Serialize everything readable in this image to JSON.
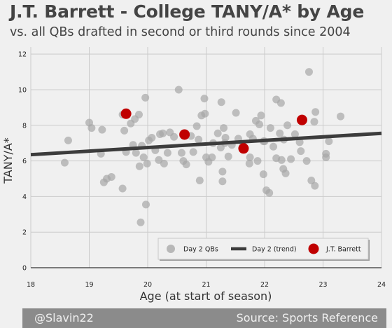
{
  "title": "J.T. Barrett - College TANY/A* by Age",
  "subtitle": "vs. all QBs drafted in second or third rounds since 2004",
  "footer": {
    "left": "@Slavin22",
    "right": "Source: Sports Reference"
  },
  "colors": {
    "background": "#f0f0f0",
    "grid": "#cbcbcb",
    "day2": "#a6a6a6",
    "trend": "#3c3c3c",
    "barrett": "#c00000",
    "footer": "#8b8b8b"
  },
  "chart_data": {
    "type": "scatter",
    "xlabel": "Age (at start of season)",
    "ylabel": "TANY/A*",
    "xlim": [
      18,
      24
    ],
    "ylim": [
      0,
      12.4
    ],
    "xticks": [
      18,
      19,
      20,
      21,
      22,
      23,
      24
    ],
    "yticks": [
      0,
      2,
      4,
      6,
      8,
      10,
      12
    ],
    "grid": true,
    "legend_position": "bottom-right",
    "series": [
      {
        "name": "Day 2 QBs",
        "type": "scatter",
        "points": [
          [
            18.58,
            5.9
          ],
          [
            18.64,
            7.15
          ],
          [
            19.0,
            8.15
          ],
          [
            19.04,
            7.85
          ],
          [
            19.2,
            6.4
          ],
          [
            19.22,
            7.75
          ],
          [
            19.25,
            4.8
          ],
          [
            19.3,
            5.0
          ],
          [
            19.38,
            5.1
          ],
          [
            19.57,
            8.6
          ],
          [
            19.57,
            4.45
          ],
          [
            19.6,
            7.7
          ],
          [
            19.63,
            6.5
          ],
          [
            19.71,
            8.1
          ],
          [
            19.75,
            6.9
          ],
          [
            19.78,
            8.35
          ],
          [
            19.8,
            6.45
          ],
          [
            19.85,
            8.6
          ],
          [
            19.86,
            5.7
          ],
          [
            19.88,
            2.55
          ],
          [
            19.9,
            6.85
          ],
          [
            19.93,
            6.2
          ],
          [
            19.96,
            9.55
          ],
          [
            19.97,
            3.55
          ],
          [
            19.99,
            5.85
          ],
          [
            20.02,
            7.15
          ],
          [
            20.07,
            7.3
          ],
          [
            20.13,
            6.6
          ],
          [
            20.19,
            6.05
          ],
          [
            20.21,
            7.5
          ],
          [
            20.26,
            7.55
          ],
          [
            20.28,
            5.85
          ],
          [
            20.34,
            6.45
          ],
          [
            20.38,
            7.6
          ],
          [
            20.45,
            7.35
          ],
          [
            20.53,
            10.0
          ],
          [
            20.58,
            6.45
          ],
          [
            20.61,
            6.0
          ],
          [
            20.66,
            5.8
          ],
          [
            20.74,
            7.4
          ],
          [
            20.78,
            6.5
          ],
          [
            20.84,
            7.95
          ],
          [
            20.87,
            7.2
          ],
          [
            20.89,
            4.9
          ],
          [
            20.92,
            8.55
          ],
          [
            20.97,
            9.5
          ],
          [
            20.98,
            8.65
          ],
          [
            21.0,
            6.2
          ],
          [
            21.04,
            5.95
          ],
          [
            21.1,
            6.2
          ],
          [
            21.12,
            7.0
          ],
          [
            21.2,
            7.55
          ],
          [
            21.25,
            6.75
          ],
          [
            21.26,
            9.3
          ],
          [
            21.28,
            5.4
          ],
          [
            21.28,
            4.85
          ],
          [
            21.3,
            7.85
          ],
          [
            21.32,
            7.0
          ],
          [
            21.33,
            7.3
          ],
          [
            21.38,
            6.25
          ],
          [
            21.44,
            6.9
          ],
          [
            21.51,
            8.7
          ],
          [
            21.55,
            7.25
          ],
          [
            21.63,
            6.85
          ],
          [
            21.74,
            5.85
          ],
          [
            21.75,
            6.2
          ],
          [
            21.75,
            7.5
          ],
          [
            21.8,
            7.25
          ],
          [
            21.85,
            8.25
          ],
          [
            21.88,
            6.0
          ],
          [
            21.91,
            8.05
          ],
          [
            21.94,
            8.55
          ],
          [
            21.98,
            7.1
          ],
          [
            21.98,
            5.25
          ],
          [
            22.0,
            7.1
          ],
          [
            22.03,
            4.35
          ],
          [
            22.08,
            4.2
          ],
          [
            22.1,
            7.85
          ],
          [
            22.15,
            6.8
          ],
          [
            22.2,
            6.15
          ],
          [
            22.2,
            9.45
          ],
          [
            22.26,
            7.55
          ],
          [
            22.28,
            9.25
          ],
          [
            22.29,
            6.05
          ],
          [
            22.32,
            5.55
          ],
          [
            22.33,
            7.2
          ],
          [
            22.36,
            5.3
          ],
          [
            22.39,
            8.0
          ],
          [
            22.45,
            6.1
          ],
          [
            22.52,
            7.5
          ],
          [
            22.6,
            7.05
          ],
          [
            22.62,
            6.55
          ],
          [
            22.72,
            6.0
          ],
          [
            22.76,
            11.0
          ],
          [
            22.8,
            4.9
          ],
          [
            22.85,
            8.2
          ],
          [
            22.86,
            4.6
          ],
          [
            22.87,
            8.75
          ],
          [
            23.05,
            6.4
          ],
          [
            23.05,
            6.2
          ],
          [
            23.1,
            7.1
          ],
          [
            23.3,
            8.5
          ]
        ]
      },
      {
        "name": "Day 2 (trend)",
        "type": "line",
        "points": [
          [
            18,
            6.35
          ],
          [
            24,
            7.55
          ]
        ]
      },
      {
        "name": "J.T. Barrett",
        "type": "scatter",
        "points": [
          [
            19.63,
            8.65
          ],
          [
            20.63,
            7.48
          ],
          [
            21.64,
            6.7
          ],
          [
            22.64,
            8.3
          ]
        ]
      }
    ]
  }
}
